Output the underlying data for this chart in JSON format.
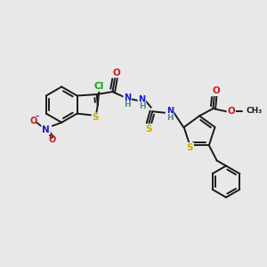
{
  "bg_color": "#e8e8e8",
  "bond_color": "#1a1a1a",
  "bond_width": 1.4,
  "atom_colors": {
    "C": "#1a1a1a",
    "H": "#5a8a8a",
    "N": "#1a1acc",
    "O": "#cc1a1a",
    "S": "#ccaa00",
    "Cl": "#00aa00",
    "NO2_N": "#1a1acc",
    "NO2_O": "#cc1a1a"
  },
  "font_size_atom": 7.5,
  "font_size_small": 6.5
}
